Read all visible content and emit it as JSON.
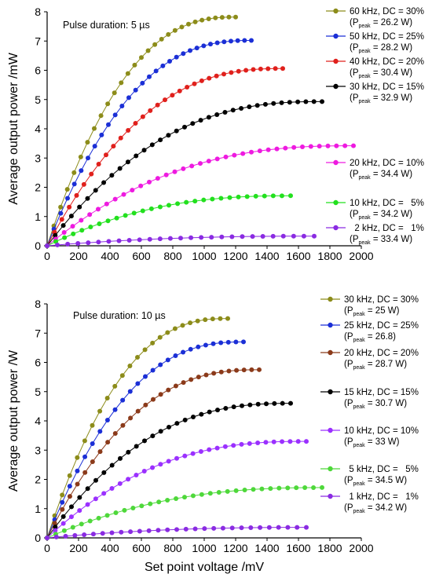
{
  "chart_data": [
    {
      "type": "line",
      "annotation": "Pulse duration: 5 µs",
      "xlabel": "",
      "ylabel": "Average output power /mW",
      "xlim": [
        0,
        2000
      ],
      "ylim": [
        0,
        8
      ],
      "xticks": [
        "0",
        "200",
        "400",
        "600",
        "800",
        "1000",
        "1200",
        "1400",
        "1600",
        "1800",
        "2000"
      ],
      "yticks": [
        "0",
        "1",
        "2",
        "3",
        "4",
        "5",
        "6",
        "7",
        "8"
      ],
      "grid": false,
      "legend_position": "right",
      "series": [
        {
          "name": "60 kHz, DC = 30%",
          "sub_pre": "(P",
          "sub": "peak",
          "sub_post": " = 26.2 W)",
          "color": "#8c8c1a",
          "xmax": 1200,
          "ymax": 7.82,
          "k": 1.5,
          "n": 28
        },
        {
          "name": "50 kHz, DC = 25%",
          "sub_pre": "(P",
          "sub": "peak",
          "sub_post": " = 28.2 W)",
          "color": "#1b2fd6",
          "xmax": 1300,
          "ymax": 7.02,
          "k": 1.5,
          "n": 30
        },
        {
          "name": "40 kHz, DC = 20%",
          "sub_pre": "(P",
          "sub": "peak",
          "sub_post": " = 30.4 W)",
          "color": "#e0201c",
          "xmax": 1500,
          "ymax": 6.06,
          "k": 1.5,
          "n": 32
        },
        {
          "name": "30 kHz, DC = 15%",
          "sub_pre": "(P",
          "sub": "peak",
          "sub_post": " = 32.9 W)",
          "color": "#000000",
          "xmax": 1750,
          "ymax": 4.93,
          "k": 1.5,
          "n": 34
        },
        {
          "name": "20 kHz, DC = 10%",
          "sub_pre": "(P",
          "sub": "peak",
          "sub_post": " = 34.4 W)",
          "color": "#ee1ae0",
          "xmax": 1950,
          "ymax": 3.42,
          "k": 1.5,
          "n": 36
        },
        {
          "name": "10 kHz, DC =   5%",
          "sub_pre": "(P",
          "sub": "peak",
          "sub_post": " = 34.2 W)",
          "color": "#22e01e",
          "xmax": 1550,
          "ymax": 1.71,
          "k": 1.4,
          "n": 28
        },
        {
          "name": "  2 kHz, DC =   1%",
          "sub_pre": "(P",
          "sub": "peak",
          "sub_post": " = 33.4 W)",
          "color": "#8a2be2",
          "xmax": 1700,
          "ymax": 0.33,
          "k": 1.3,
          "n": 26
        }
      ]
    },
    {
      "type": "line",
      "annotation": "Pulse duration: 10 µs",
      "xlabel": "Set point voltage /mV",
      "ylabel": "Average output power /W",
      "xlim": [
        0,
        2000
      ],
      "ylim": [
        0,
        8
      ],
      "xticks": [
        "0",
        "200",
        "400",
        "600",
        "800",
        "1000",
        "1200",
        "1400",
        "1600",
        "1800",
        "2000"
      ],
      "yticks": [
        "0",
        "1",
        "2",
        "3",
        "4",
        "5",
        "6",
        "7",
        "8"
      ],
      "grid": false,
      "legend_position": "right",
      "series": [
        {
          "name": "30 kHz, DC = 30%",
          "sub_pre": "(P",
          "sub": "peak",
          "sub_post": " = 25 W)",
          "color": "#8c8c1a",
          "xmax": 1150,
          "ymax": 7.5,
          "k": 1.5,
          "n": 24
        },
        {
          "name": "25 kHz, DC = 25%",
          "sub_pre": "(P",
          "sub": "peak",
          "sub_post": " = 26.8)",
          "color": "#1b2fd6",
          "xmax": 1250,
          "ymax": 6.7,
          "k": 1.5,
          "n": 26
        },
        {
          "name": "20 kHz, DC = 20%",
          "sub_pre": "(P",
          "sub": "peak",
          "sub_post": " = 28.7 W)",
          "color": "#8b3a1a",
          "xmax": 1350,
          "ymax": 5.75,
          "k": 1.5,
          "n": 28
        },
        {
          "name": "15 kHz, DC = 15%",
          "sub_pre": "(P",
          "sub": "peak",
          "sub_post": " = 30.7 W)",
          "color": "#000000",
          "xmax": 1550,
          "ymax": 4.6,
          "k": 1.5,
          "n": 30
        },
        {
          "name": "10 kHz, DC = 10%",
          "sub_pre": "(P",
          "sub": "peak",
          "sub_post": " = 33 W)",
          "color": "#9b30ff",
          "xmax": 1650,
          "ymax": 3.3,
          "k": 1.5,
          "n": 32
        },
        {
          "name": "  5 kHz, DC =   5%",
          "sub_pre": "(P",
          "sub": "peak",
          "sub_post": " = 34.5 W)",
          "color": "#4ed83a",
          "xmax": 1750,
          "ymax": 1.72,
          "k": 1.4,
          "n": 32
        },
        {
          "name": "  1 kHz, DC =   1%",
          "sub_pre": "(P",
          "sub": "peak",
          "sub_post": " = 34.2 W)",
          "color": "#8a2be2",
          "xmax": 1650,
          "ymax": 0.36,
          "k": 1.3,
          "n": 28
        }
      ]
    }
  ]
}
